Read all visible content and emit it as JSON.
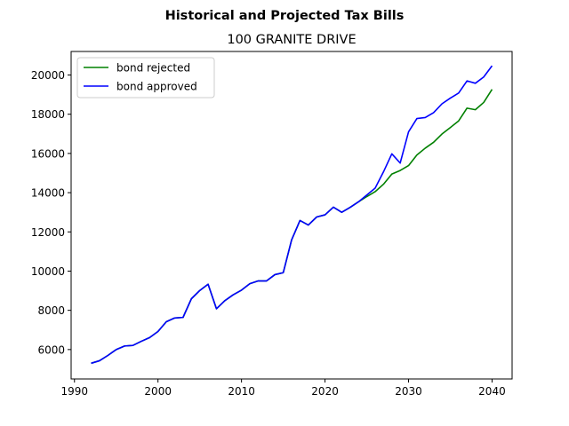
{
  "chart_data": {
    "type": "line",
    "suptitle": "Historical and Projected Tax Bills",
    "title": "100 GRANITE DRIVE",
    "xlabel": "",
    "ylabel": "",
    "xlim": [
      1989.6,
      2042.4
    ],
    "ylim": [
      4500,
      21200
    ],
    "xticks": [
      1990,
      2000,
      2010,
      2020,
      2030,
      2040
    ],
    "yticks": [
      6000,
      8000,
      10000,
      12000,
      14000,
      16000,
      18000,
      20000
    ],
    "grid": false,
    "legend_position": "upper-left",
    "series": [
      {
        "name": "bond rejected",
        "color": "#008000",
        "x": [
          1992,
          1993,
          1994,
          1995,
          1996,
          1997,
          1998,
          1999,
          2000,
          2001,
          2002,
          2003,
          2004,
          2005,
          2006,
          2007,
          2008,
          2009,
          2010,
          2011,
          2012,
          2013,
          2014,
          2015,
          2016,
          2017,
          2018,
          2019,
          2020,
          2021,
          2022,
          2023,
          2024,
          2025,
          2026,
          2027,
          2028,
          2029,
          2030,
          2031,
          2032,
          2033,
          2034,
          2035,
          2036,
          2037,
          2038,
          2039,
          2040
        ],
        "y": [
          5300,
          5430,
          5700,
          6000,
          6180,
          6210,
          6420,
          6610,
          6920,
          7420,
          7610,
          7640,
          8590,
          9010,
          9330,
          8080,
          8490,
          8790,
          9030,
          9360,
          9500,
          9500,
          9820,
          9920,
          11590,
          12580,
          12350,
          12760,
          12870,
          13260,
          13000,
          13250,
          13530,
          13800,
          14050,
          14430,
          14950,
          15130,
          15380,
          15920,
          16270,
          16570,
          16990,
          17320,
          17660,
          18310,
          18230,
          18600,
          19270
        ]
      },
      {
        "name": "bond approved",
        "color": "#0000ff",
        "x": [
          1992,
          1993,
          1994,
          1995,
          1996,
          1997,
          1998,
          1999,
          2000,
          2001,
          2002,
          2003,
          2004,
          2005,
          2006,
          2007,
          2008,
          2009,
          2010,
          2011,
          2012,
          2013,
          2014,
          2015,
          2016,
          2017,
          2018,
          2019,
          2020,
          2021,
          2022,
          2023,
          2024,
          2025,
          2026,
          2027,
          2028,
          2029,
          2030,
          2031,
          2032,
          2033,
          2034,
          2035,
          2036,
          2037,
          2038,
          2039,
          2040
        ],
        "y": [
          5300,
          5430,
          5700,
          6000,
          6180,
          6210,
          6420,
          6610,
          6920,
          7420,
          7610,
          7640,
          8590,
          9010,
          9330,
          8080,
          8490,
          8790,
          9030,
          9360,
          9500,
          9500,
          9820,
          9920,
          11590,
          12580,
          12350,
          12760,
          12870,
          13260,
          13000,
          13250,
          13530,
          13880,
          14230,
          15060,
          15980,
          15510,
          17100,
          17780,
          17830,
          18080,
          18530,
          18820,
          19080,
          19700,
          19580,
          19900,
          20470
        ]
      }
    ]
  }
}
